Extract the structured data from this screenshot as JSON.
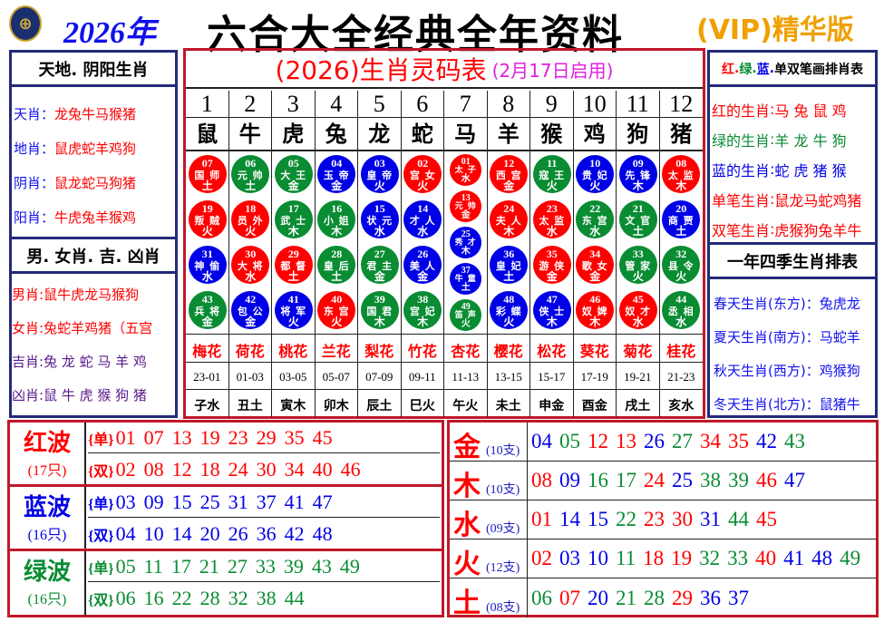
{
  "header": {
    "logo_icon": "hkjc-logo",
    "year": "2026年",
    "title": "六合大全经典全年资料",
    "vip": "(VIP)精华版"
  },
  "colors": {
    "red": "#ff0000",
    "green": "#0a8c33",
    "blue": "#0000e6"
  },
  "left": {
    "title1": "天地. 阴阳生肖",
    "rows1": [
      {
        "k": "天肖",
        "v": "龙兔牛马猴猪"
      },
      {
        "k": "地肖",
        "v": "鼠虎蛇羊鸡狗"
      },
      {
        "k": "阴肖",
        "v": "鼠龙蛇马狗猪"
      },
      {
        "k": "阳肖",
        "v": "牛虎兔羊猴鸡"
      }
    ],
    "title2": "男. 女肖. 吉. 凶肖",
    "rows2": [
      {
        "k": "男肖",
        "v": "鼠牛虎龙马猴狗",
        "c": "#ff0000"
      },
      {
        "k": "女肖",
        "v": "兔蛇羊鸡猪（五宫",
        "c": "#ff0000"
      },
      {
        "k": "吉肖",
        "v": "兔 龙 蛇 马 羊 鸡",
        "c": "#5a1a8a"
      },
      {
        "k": "凶肖",
        "v": "鼠 牛 虎 猴 狗 猪",
        "c": "#5a1a8a"
      }
    ]
  },
  "right": {
    "title1_parts": [
      {
        "t": "红",
        "c": "#ff0000"
      },
      {
        "t": "绿",
        "c": "#0a8c33"
      },
      {
        "t": "蓝",
        "c": "#0000e6"
      },
      {
        "t": "单双笔画排肖表",
        "c": "#000000"
      }
    ],
    "rows1": [
      {
        "k": "红的生肖",
        "v": "马 兔 鼠 鸡",
        "c": "#ff0000"
      },
      {
        "k": "绿的生肖",
        "v": "羊 龙 牛 狗",
        "c": "#0a8c33"
      },
      {
        "k": "蓝的生肖",
        "v": "蛇 虎 猪 猴",
        "c": "#0000e6"
      },
      {
        "k": "单笔生肖",
        "v": "鼠龙马蛇鸡猪",
        "c": "#ff0000"
      },
      {
        "k": "双笔生肖",
        "v": "虎猴狗兔羊牛",
        "c": "#ff0000"
      }
    ],
    "title2": "一年四季生肖排表",
    "rows2": [
      {
        "k": "春天生肖(东方)",
        "v": "兔虎龙"
      },
      {
        "k": "夏天生肖(南方)",
        "v": "马蛇羊"
      },
      {
        "k": "秋天生肖(西方)",
        "v": "鸡猴狗"
      },
      {
        "k": "冬天生肖(北方)",
        "v": "鼠猪牛"
      }
    ]
  },
  "table": {
    "title": "(2026)生肖灵码表",
    "subtitle": "(2月17日启用)",
    "columns": [
      {
        "num": "1",
        "zodiac": "鼠",
        "balls": [
          [
            "07",
            "国 师",
            "土"
          ],
          [
            "19",
            "叛 贼",
            "火"
          ],
          [
            "31",
            "神 偷",
            "水"
          ],
          [
            "43",
            "兵 将",
            "金"
          ]
        ],
        "flower": "梅花",
        "time": "23-01",
        "branch": "子水"
      },
      {
        "num": "2",
        "zodiac": "牛",
        "balls": [
          [
            "06",
            "元 帅",
            "土"
          ],
          [
            "18",
            "员 外",
            "火"
          ],
          [
            "30",
            "大 将",
            "水"
          ],
          [
            "42",
            "包 公",
            "金"
          ]
        ],
        "flower": "荷花",
        "time": "01-03",
        "branch": "丑土"
      },
      {
        "num": "3",
        "zodiac": "虎",
        "balls": [
          [
            "05",
            "大 王",
            "金"
          ],
          [
            "17",
            "武 士",
            "木"
          ],
          [
            "29",
            "都 督",
            "土"
          ],
          [
            "41",
            "将 军",
            "火"
          ]
        ],
        "flower": "桃花",
        "time": "03-05",
        "branch": "寅木"
      },
      {
        "num": "4",
        "zodiac": "兔",
        "balls": [
          [
            "04",
            "玉 帝",
            "金"
          ],
          [
            "16",
            "小 姐",
            "木"
          ],
          [
            "28",
            "皇 后",
            "土"
          ],
          [
            "40",
            "东 宫",
            "火"
          ]
        ],
        "flower": "兰花",
        "time": "05-07",
        "branch": "卯木"
      },
      {
        "num": "5",
        "zodiac": "龙",
        "balls": [
          [
            "03",
            "皇 帝",
            "火"
          ],
          [
            "15",
            "状 元",
            "水"
          ],
          [
            "27",
            "君 主",
            "金"
          ],
          [
            "39",
            "国 君",
            "木"
          ]
        ],
        "flower": "梨花",
        "time": "07-09",
        "branch": "辰土"
      },
      {
        "num": "6",
        "zodiac": "蛇",
        "balls": [
          [
            "02",
            "宫 女",
            "火"
          ],
          [
            "14",
            "才 人",
            "水"
          ],
          [
            "26",
            "美 人",
            "金"
          ],
          [
            "38",
            "宫 妃",
            "木"
          ]
        ],
        "flower": "竹花",
        "time": "09-11",
        "branch": "巳火"
      },
      {
        "num": "7",
        "zodiac": "马",
        "balls": [
          [
            "01",
            "太 子",
            "水"
          ],
          [
            "13",
            "元 帅",
            "金"
          ],
          [
            "25",
            "秀 才",
            "木"
          ],
          [
            "37",
            "牛 童",
            "土"
          ],
          [
            "49",
            "笛 声",
            "火"
          ]
        ],
        "flower": "杏花",
        "time": "11-13",
        "branch": "午火"
      },
      {
        "num": "8",
        "zodiac": "羊",
        "balls": [
          [
            "12",
            "西 宫",
            "金"
          ],
          [
            "24",
            "夫 人",
            "木"
          ],
          [
            "36",
            "皇 妃",
            "土"
          ],
          [
            "48",
            "彩 蝶",
            "火"
          ]
        ],
        "flower": "樱花",
        "time": "13-15",
        "branch": "未土"
      },
      {
        "num": "9",
        "zodiac": "猴",
        "balls": [
          [
            "11",
            "寇 王",
            "火"
          ],
          [
            "23",
            "太 监",
            "水"
          ],
          [
            "35",
            "游 侠",
            "金"
          ],
          [
            "47",
            "侠 士",
            "木"
          ]
        ],
        "flower": "松花",
        "time": "15-17",
        "branch": "申金"
      },
      {
        "num": "10",
        "zodiac": "鸡",
        "balls": [
          [
            "10",
            "贵 妃",
            "火"
          ],
          [
            "22",
            "东 宫",
            "水"
          ],
          [
            "34",
            "歌 女",
            "金"
          ],
          [
            "46",
            "奴 婢",
            "木"
          ]
        ],
        "flower": "葵花",
        "time": "17-19",
        "branch": "酉金"
      },
      {
        "num": "11",
        "zodiac": "狗",
        "balls": [
          [
            "09",
            "先 锋",
            "木"
          ],
          [
            "21",
            "文 官",
            "土"
          ],
          [
            "33",
            "管 家",
            "火"
          ],
          [
            "45",
            "奴 才",
            "水"
          ]
        ],
        "flower": "菊花",
        "time": "19-21",
        "branch": "戌土"
      },
      {
        "num": "12",
        "zodiac": "猪",
        "balls": [
          [
            "08",
            "太 监",
            "木"
          ],
          [
            "20",
            "商 贾",
            "土"
          ],
          [
            "32",
            "县 令",
            "火"
          ],
          [
            "44",
            "丞 相",
            "水"
          ]
        ],
        "flower": "桂花",
        "time": "21-23",
        "branch": "亥水"
      }
    ]
  },
  "waves": [
    {
      "name": "红波",
      "count": "(17只)",
      "color": "red",
      "odd_label": "{单}",
      "even_label": "{双}",
      "odd": [
        "01",
        "07",
        "13",
        "19",
        "23",
        "29",
        "35",
        "45"
      ],
      "even": [
        "02",
        "08",
        "12",
        "18",
        "24",
        "30",
        "34",
        "40",
        "46"
      ]
    },
    {
      "name": "蓝波",
      "count": "(16只)",
      "color": "blue",
      "odd_label": "{单}",
      "even_label": "{双}",
      "odd": [
        "03",
        "09",
        "15",
        "25",
        "31",
        "37",
        "41",
        "47"
      ],
      "even": [
        "04",
        "10",
        "14",
        "20",
        "26",
        "36",
        "42",
        "48"
      ]
    },
    {
      "name": "绿波",
      "count": "(16只)",
      "color": "green",
      "odd_label": "{单}",
      "even_label": "{双}",
      "odd": [
        "05",
        "11",
        "17",
        "21",
        "27",
        "33",
        "39",
        "43",
        "49"
      ],
      "even": [
        "06",
        "16",
        "22",
        "28",
        "32",
        "38",
        "44"
      ]
    }
  ],
  "elements": [
    {
      "name": "金",
      "count": "(10支)",
      "nums": [
        "04",
        "05",
        "12",
        "13",
        "26",
        "27",
        "34",
        "35",
        "42",
        "43"
      ]
    },
    {
      "name": "木",
      "count": "(10支)",
      "nums": [
        "08",
        "09",
        "16",
        "17",
        "24",
        "25",
        "38",
        "39",
        "46",
        "47"
      ]
    },
    {
      "name": "水",
      "count": "(09支)",
      "nums": [
        "01",
        "14",
        "15",
        "22",
        "23",
        "30",
        "31",
        "44",
        "45"
      ]
    },
    {
      "name": "火",
      "count": "(12支)",
      "nums": [
        "02",
        "03",
        "10",
        "11",
        "18",
        "19",
        "32",
        "33",
        "40",
        "41",
        "48",
        "49"
      ]
    },
    {
      "name": "土",
      "count": "(08支)",
      "nums": [
        "06",
        "07",
        "20",
        "21",
        "28",
        "29",
        "36",
        "37"
      ]
    }
  ]
}
